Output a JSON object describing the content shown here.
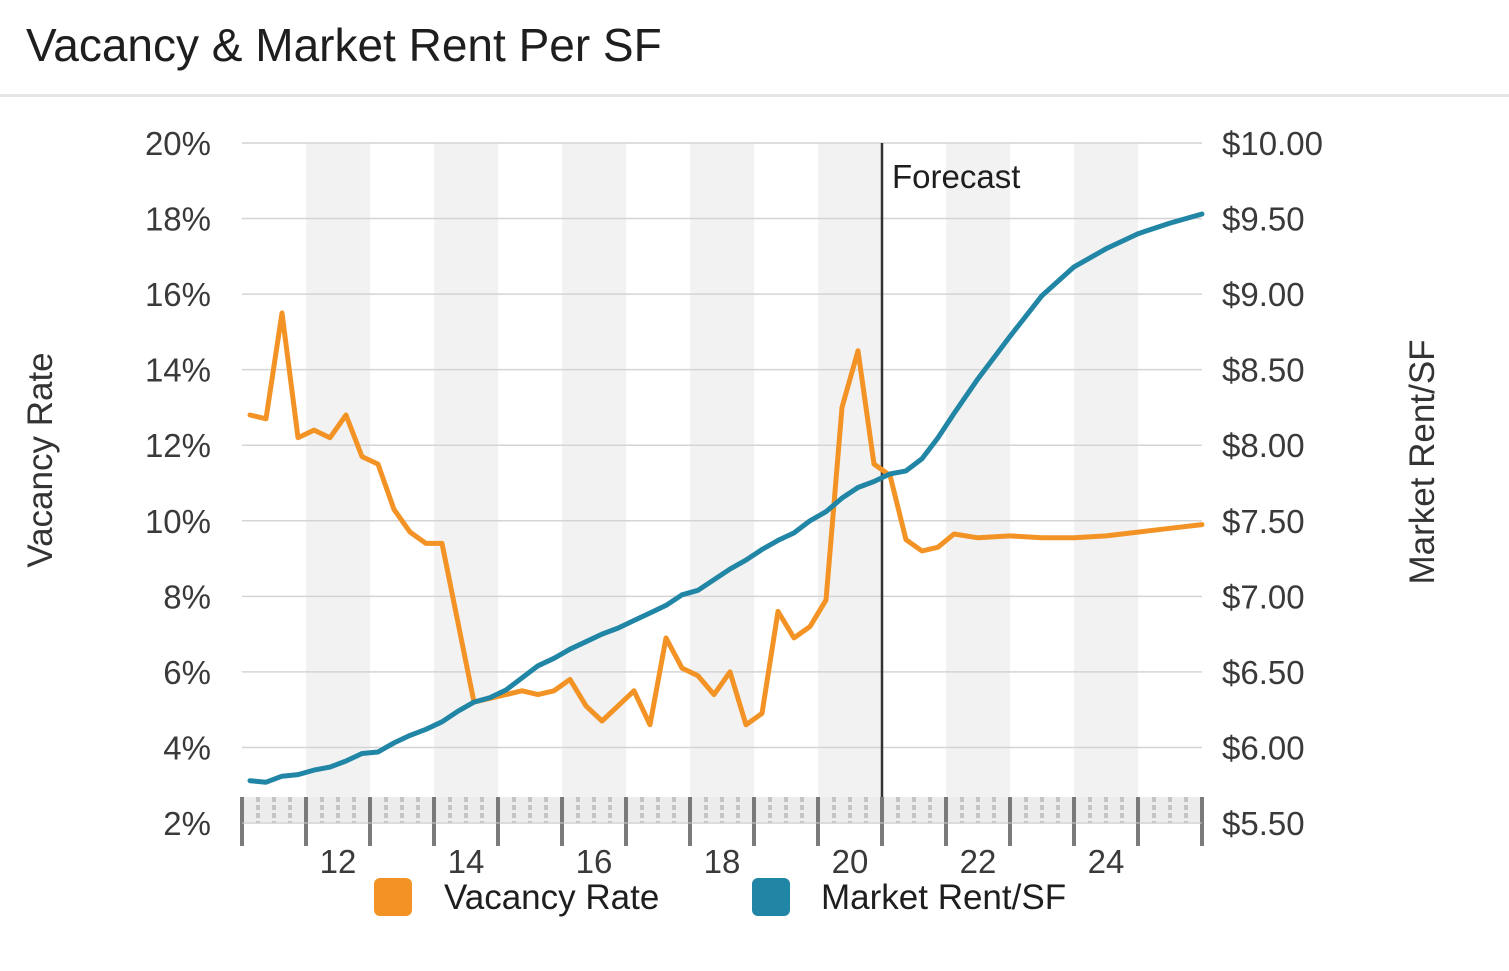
{
  "title": "Vacancy & Market Rent Per SF",
  "colors": {
    "vacancy": "#F39325",
    "rent": "#2186A5",
    "band": "#f2f2f2",
    "grid": "#d4d4d4",
    "forecast_line": "#333333"
  },
  "chart_data": {
    "type": "line",
    "title": "Vacancy & Market Rent Per SF",
    "xlabel": "",
    "ylabel_left": "Vacancy Rate",
    "ylabel_right": "Market Rent/SF",
    "x_tick_labels": [
      "12",
      "14",
      "16",
      "18",
      "20",
      "22",
      "24"
    ],
    "y_left_ticks": [
      "20%",
      "18%",
      "16%",
      "14%",
      "12%",
      "10%",
      "8%",
      "6%",
      "4%",
      "2%"
    ],
    "y_right_ticks": [
      "$10.00",
      "$9.50",
      "$9.00",
      "$8.50",
      "$8.00",
      "$7.50",
      "$7.00",
      "$6.50",
      "$6.00",
      "$5.50"
    ],
    "ylim_left": [
      2,
      20
    ],
    "ylim_right": [
      5.5,
      10.0
    ],
    "xlim": [
      2010.5,
      2025.5
    ],
    "forecast_start": 2020.5,
    "forecast_label": "Forecast",
    "grid": true,
    "legend_position": "bottom",
    "series": [
      {
        "name": "Vacancy Rate",
        "axis": "left",
        "color": "#F39325",
        "x": [
          2010.625,
          2010.875,
          2011.125,
          2011.375,
          2011.625,
          2011.875,
          2012.125,
          2012.375,
          2012.625,
          2012.875,
          2013.125,
          2013.375,
          2013.625,
          2013.875,
          2014.125,
          2014.375,
          2014.625,
          2014.875,
          2015.125,
          2015.375,
          2015.625,
          2015.875,
          2016.125,
          2016.375,
          2016.625,
          2016.875,
          2017.125,
          2017.375,
          2017.625,
          2017.875,
          2018.125,
          2018.375,
          2018.625,
          2018.875,
          2019.125,
          2019.375,
          2019.625,
          2019.875,
          2020.125,
          2020.375,
          2020.625,
          2020.875,
          2021.125,
          2021.375,
          2021.625,
          2022.0,
          2022.5,
          2023.0,
          2023.5,
          2024.0,
          2024.5,
          2025.0,
          2025.5
        ],
        "y": [
          12.8,
          12.7,
          15.5,
          12.2,
          12.4,
          12.2,
          12.8,
          11.7,
          11.5,
          10.3,
          9.7,
          9.4,
          9.4,
          7.3,
          5.2,
          5.3,
          5.4,
          5.5,
          5.4,
          5.5,
          5.8,
          5.1,
          4.7,
          5.1,
          5.5,
          4.6,
          6.9,
          6.1,
          5.9,
          5.4,
          6.0,
          4.6,
          4.9,
          7.6,
          6.9,
          7.2,
          7.9,
          13.0,
          14.5,
          11.5,
          11.2,
          9.5,
          9.2,
          9.3,
          9.65,
          9.55,
          9.6,
          9.55,
          9.55,
          9.6,
          9.7,
          9.8,
          9.9
        ]
      },
      {
        "name": "Market Rent/SF",
        "axis": "right",
        "color": "#2186A5",
        "x": [
          2010.625,
          2010.875,
          2011.125,
          2011.375,
          2011.625,
          2011.875,
          2012.125,
          2012.375,
          2012.625,
          2012.875,
          2013.125,
          2013.375,
          2013.625,
          2013.875,
          2014.125,
          2014.375,
          2014.625,
          2014.875,
          2015.125,
          2015.375,
          2015.625,
          2015.875,
          2016.125,
          2016.375,
          2016.625,
          2016.875,
          2017.125,
          2017.375,
          2017.625,
          2017.875,
          2018.125,
          2018.375,
          2018.625,
          2018.875,
          2019.125,
          2019.375,
          2019.625,
          2019.875,
          2020.125,
          2020.375,
          2020.625,
          2020.875,
          2021.125,
          2021.375,
          2021.625,
          2022.0,
          2022.5,
          2023.0,
          2023.5,
          2024.0,
          2024.5,
          2025.0,
          2025.5
        ],
        "y": [
          5.78,
          5.77,
          5.81,
          5.82,
          5.85,
          5.87,
          5.91,
          5.96,
          5.97,
          6.03,
          6.08,
          6.12,
          6.17,
          6.24,
          6.3,
          6.33,
          6.38,
          6.46,
          6.54,
          6.59,
          6.65,
          6.7,
          6.75,
          6.79,
          6.84,
          6.89,
          6.94,
          7.01,
          7.04,
          7.11,
          7.18,
          7.24,
          7.31,
          7.37,
          7.42,
          7.5,
          7.56,
          7.65,
          7.72,
          7.76,
          7.81,
          7.83,
          7.91,
          8.05,
          8.21,
          8.44,
          8.72,
          8.99,
          9.18,
          9.3,
          9.4,
          9.47,
          9.53
        ]
      }
    ]
  }
}
